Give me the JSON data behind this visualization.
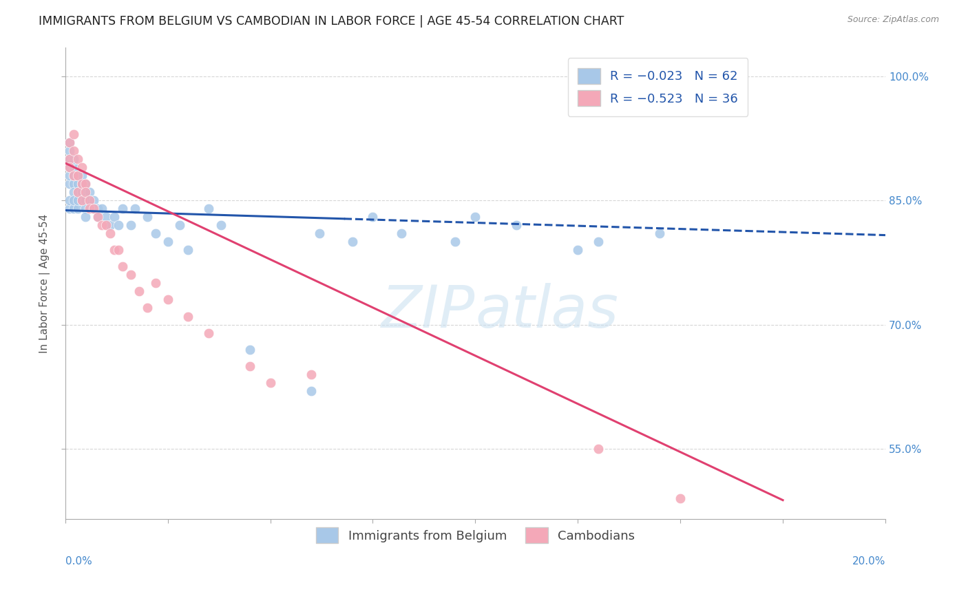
{
  "title": "IMMIGRANTS FROM BELGIUM VS CAMBODIAN IN LABOR FORCE | AGE 45-54 CORRELATION CHART",
  "source": "Source: ZipAtlas.com",
  "ylabel": "In Labor Force | Age 45-54",
  "xmin": 0.0,
  "xmax": 0.2,
  "ymin": 0.465,
  "ymax": 1.035,
  "scatter_color_belgium": "#a8c8e8",
  "scatter_color_cambodian": "#f4a8b8",
  "line_color_belgium": "#2255aa",
  "line_color_cambodian": "#e04070",
  "background_color": "#ffffff",
  "grid_color": "#cccccc",
  "title_fontsize": 12.5,
  "axis_label_fontsize": 11,
  "tick_fontsize": 11,
  "legend_fontsize": 13,
  "belgium_line_x0": 0.0,
  "belgium_line_x1": 0.2,
  "belgium_line_y0": 0.838,
  "belgium_line_y1": 0.808,
  "belgium_line_split": 0.068,
  "cambodian_line_x0": 0.0,
  "cambodian_line_x1": 0.175,
  "cambodian_line_y0": 0.895,
  "cambodian_line_y1": 0.488,
  "belgium_x": [
    0.001,
    0.001,
    0.001,
    0.001,
    0.001,
    0.001,
    0.001,
    0.001,
    0.002,
    0.002,
    0.002,
    0.002,
    0.002,
    0.002,
    0.002,
    0.003,
    0.003,
    0.003,
    0.003,
    0.003,
    0.004,
    0.004,
    0.004,
    0.004,
    0.005,
    0.005,
    0.005,
    0.005,
    0.005,
    0.006,
    0.006,
    0.007,
    0.007,
    0.008,
    0.008,
    0.009,
    0.01,
    0.011,
    0.012,
    0.013,
    0.014,
    0.016,
    0.017,
    0.02,
    0.022,
    0.025,
    0.028,
    0.03,
    0.035,
    0.038,
    0.045,
    0.06,
    0.062,
    0.07,
    0.075,
    0.082,
    0.095,
    0.1,
    0.11,
    0.125,
    0.13,
    0.145
  ],
  "belgium_y": [
    0.87,
    0.88,
    0.89,
    0.9,
    0.91,
    0.92,
    0.84,
    0.85,
    0.87,
    0.88,
    0.89,
    0.9,
    0.86,
    0.84,
    0.85,
    0.87,
    0.88,
    0.86,
    0.84,
    0.85,
    0.87,
    0.86,
    0.88,
    0.85,
    0.87,
    0.86,
    0.85,
    0.84,
    0.83,
    0.86,
    0.85,
    0.85,
    0.84,
    0.84,
    0.83,
    0.84,
    0.83,
    0.82,
    0.83,
    0.82,
    0.84,
    0.82,
    0.84,
    0.83,
    0.81,
    0.8,
    0.82,
    0.79,
    0.84,
    0.82,
    0.67,
    0.62,
    0.81,
    0.8,
    0.83,
    0.81,
    0.8,
    0.83,
    0.82,
    0.79,
    0.8,
    0.81
  ],
  "cambodian_x": [
    0.001,
    0.001,
    0.001,
    0.002,
    0.002,
    0.002,
    0.003,
    0.003,
    0.003,
    0.004,
    0.004,
    0.004,
    0.005,
    0.005,
    0.006,
    0.006,
    0.007,
    0.008,
    0.009,
    0.01,
    0.011,
    0.012,
    0.013,
    0.014,
    0.016,
    0.018,
    0.02,
    0.022,
    0.025,
    0.03,
    0.035,
    0.045,
    0.05,
    0.06,
    0.13,
    0.15
  ],
  "cambodian_y": [
    0.92,
    0.9,
    0.89,
    0.93,
    0.91,
    0.88,
    0.9,
    0.88,
    0.86,
    0.89,
    0.87,
    0.85,
    0.87,
    0.86,
    0.85,
    0.84,
    0.84,
    0.83,
    0.82,
    0.82,
    0.81,
    0.79,
    0.79,
    0.77,
    0.76,
    0.74,
    0.72,
    0.75,
    0.73,
    0.71,
    0.69,
    0.65,
    0.63,
    0.64,
    0.55,
    0.49
  ]
}
